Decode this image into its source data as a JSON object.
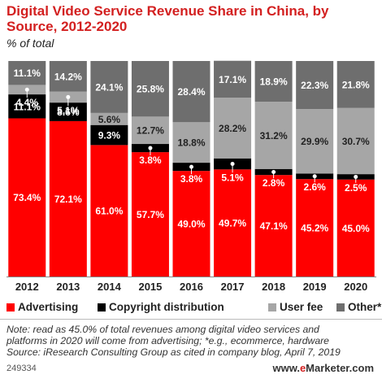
{
  "title": "Digital Video Service Revenue Share in China, by Source, 2012-2020",
  "subtitle": "% of total",
  "chart_data": {
    "type": "bar",
    "stacked": true,
    "categories": [
      "2012",
      "2013",
      "2014",
      "2015",
      "2016",
      "2017",
      "2018",
      "2019",
      "2020"
    ],
    "series": [
      {
        "name": "Advertising",
        "color": "#ff0000",
        "values": [
          73.4,
          72.1,
          61.0,
          57.7,
          49.0,
          49.7,
          47.1,
          45.2,
          45.0
        ],
        "labels": [
          "73.4%",
          "72.1%",
          "61.0%",
          "57.7%",
          "49.0%",
          "49.7%",
          "47.1%",
          "45.2%",
          "45.0%"
        ]
      },
      {
        "name": "Copyright distribution",
        "color": "#000000",
        "values": [
          11.1,
          8.6,
          9.3,
          3.8,
          3.8,
          5.1,
          2.8,
          2.6,
          2.5
        ],
        "labels": [
          "11.1%",
          "8.6%",
          "9.3%",
          "3.8%",
          "3.8%",
          "5.1%",
          "2.8%",
          "2.6%",
          "2.5%"
        ]
      },
      {
        "name": "User fee",
        "color": "#a6a6a6",
        "values": [
          4.4,
          5.1,
          5.6,
          12.7,
          18.8,
          28.2,
          31.2,
          29.9,
          30.7
        ],
        "labels": [
          "4.4%",
          "5.1%",
          "5.6%",
          "12.7%",
          "18.8%",
          "28.2%",
          "31.2%",
          "29.9%",
          "30.7%"
        ]
      },
      {
        "name": "Other*",
        "color": "#6e6e6e",
        "values": [
          11.1,
          14.2,
          24.1,
          25.8,
          28.4,
          17.1,
          18.9,
          22.3,
          21.8
        ],
        "labels": [
          "11.1%",
          "14.2%",
          "24.1%",
          "25.8%",
          "28.4%",
          "17.1%",
          "18.9%",
          "22.3%",
          "21.8%"
        ]
      }
    ],
    "ylim": [
      0,
      100
    ],
    "legend_position": "bottom"
  },
  "note_lines": [
    "Note: read as 45.0% of total revenues among digital video services and",
    "platforms in 2020 will come from advertising; *e.g., ecommerce, hardware",
    "Source: iResearch Consulting Group as cited in company blog, April 7, 2019"
  ],
  "footer": {
    "id": "249334",
    "brand_prefix": "www.",
    "brand_accent": "e",
    "brand_name": "Marketer",
    "brand_suffix": ".com"
  }
}
